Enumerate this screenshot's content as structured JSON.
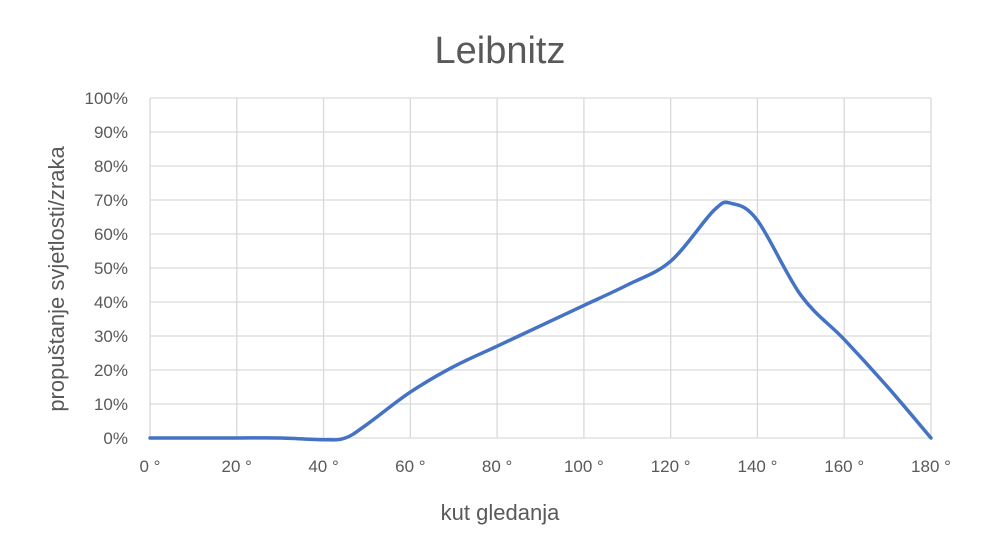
{
  "chart_data": {
    "type": "line",
    "title": "Leibnitz",
    "xlabel": "kut gledanja",
    "ylabel": "propuštanje svjetlosti/zraka",
    "x_ticks": [
      "0 °",
      "20 °",
      "40 °",
      "60 °",
      "80 °",
      "100 °",
      "120 °",
      "140 °",
      "160 °",
      "180 °"
    ],
    "y_ticks": [
      "0%",
      "10%",
      "20%",
      "30%",
      "40%",
      "50%",
      "60%",
      "70%",
      "80%",
      "90%",
      "100%"
    ],
    "xlim": [
      0,
      180
    ],
    "ylim": [
      0,
      100
    ],
    "grid": true,
    "series": [
      {
        "color": "#4472C4",
        "x": [
          0,
          10,
          20,
          30,
          40,
          45,
          50,
          60,
          70,
          80,
          90,
          100,
          110,
          120,
          130,
          134,
          140,
          150,
          160,
          170,
          180
        ],
        "y": [
          0,
          0,
          0,
          0,
          -0.5,
          0,
          4,
          13.5,
          21,
          27,
          33,
          39,
          45,
          52,
          67,
          69,
          64,
          42,
          29,
          15,
          0
        ]
      }
    ]
  }
}
